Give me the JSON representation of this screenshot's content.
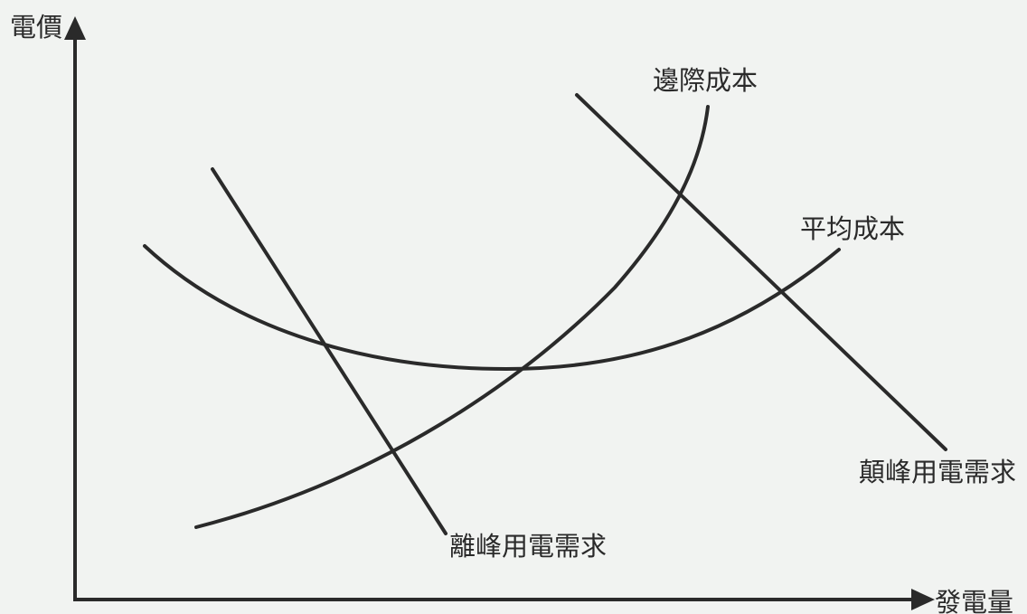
{
  "axes": {
    "y_label": "電價",
    "x_label": "發電量"
  },
  "curves": {
    "marginal_cost": "邊際成本",
    "average_cost": "平均成本",
    "peak_demand": "顛峰用電需求",
    "offpeak_demand": "離峰用電需求"
  },
  "colors": {
    "background": "#f1f3f1",
    "ink": "#2a2a2a"
  }
}
